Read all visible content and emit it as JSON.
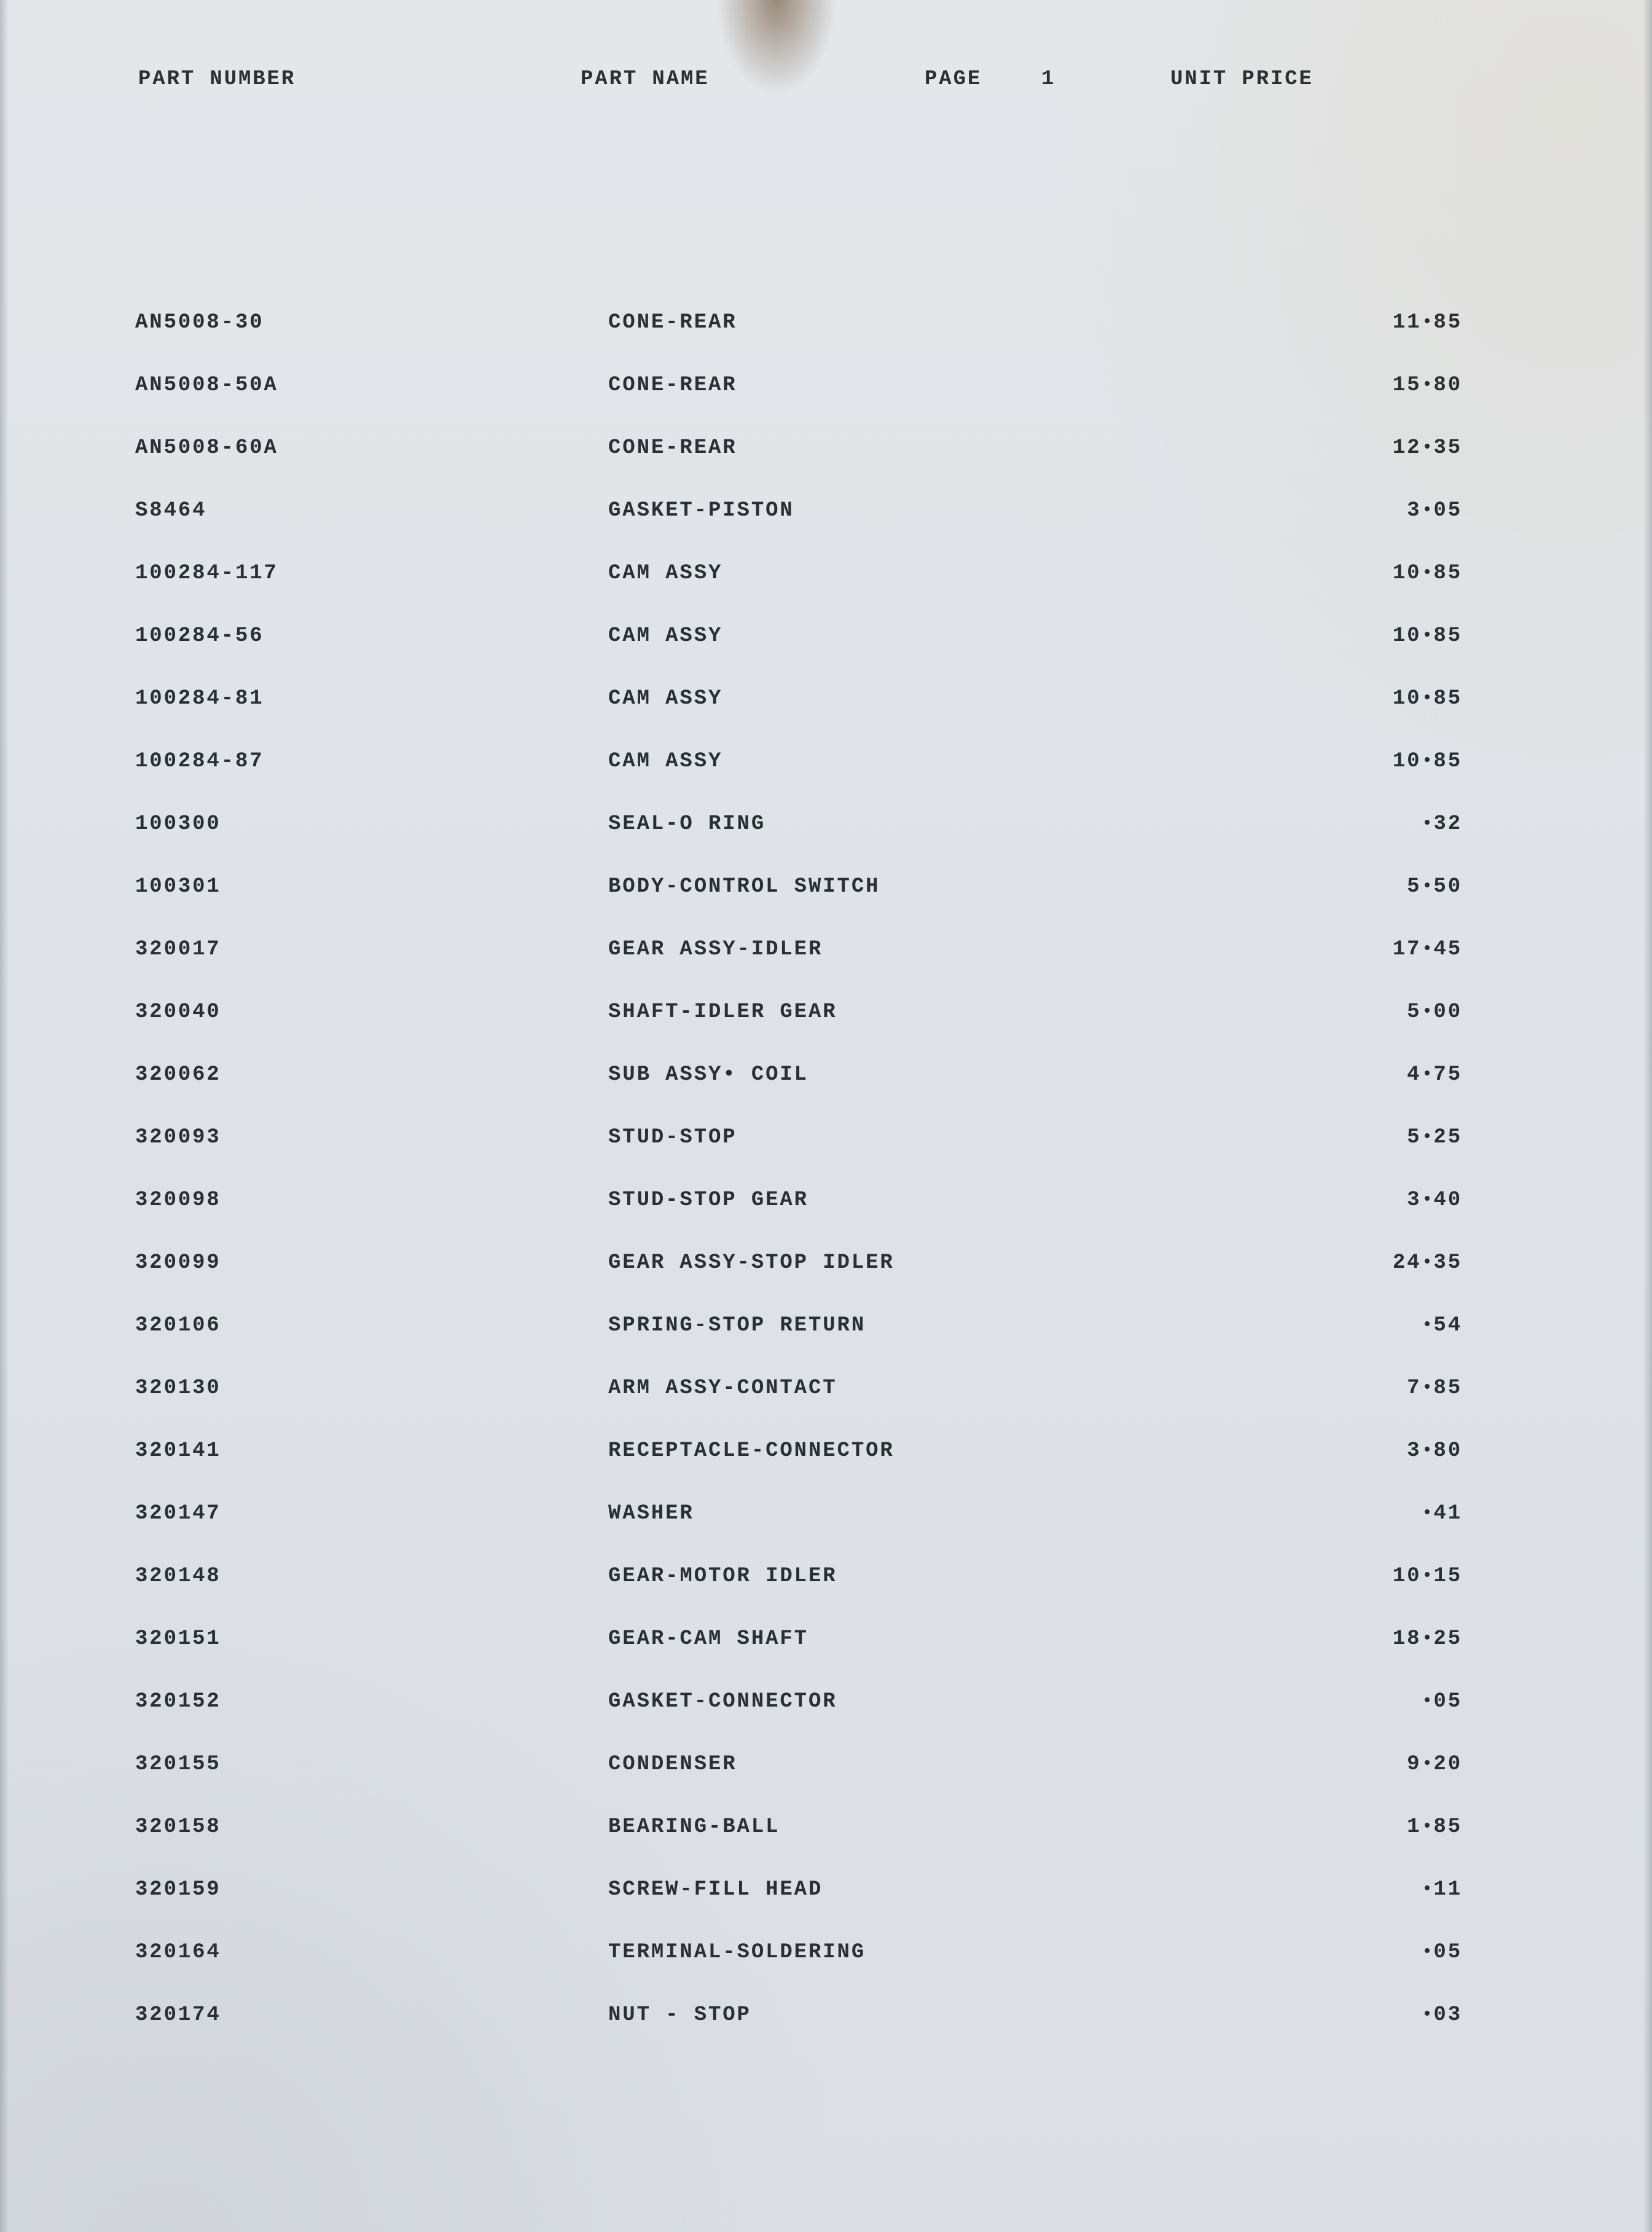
{
  "document": {
    "type": "table",
    "page_number": "1",
    "background_color": "#e2e6ea",
    "text_color": "#2a2f33",
    "font_family": "Courier / typewriter monospace",
    "font_size_pt": 11,
    "letter_spacing_em": 0.18,
    "columns": [
      {
        "key": "part_number",
        "label": "PART NUMBER",
        "align": "left"
      },
      {
        "key": "part_name",
        "label": "PART NAME",
        "align": "left"
      },
      {
        "key": "page",
        "label": "PAGE",
        "align": "left"
      },
      {
        "key": "unit_price",
        "label": "UNIT PRICE",
        "align": "right"
      }
    ],
    "decimal_glyph": "bullet",
    "rows": [
      {
        "part_number": "AN5008-30",
        "part_name": "CONE-REAR",
        "price_int": "11",
        "price_frac": "85"
      },
      {
        "part_number": "AN5008-50A",
        "part_name": "CONE-REAR",
        "price_int": "15",
        "price_frac": "80"
      },
      {
        "part_number": "AN5008-60A",
        "part_name": "CONE-REAR",
        "price_int": "12",
        "price_frac": "35"
      },
      {
        "part_number": "S8464",
        "part_name": "GASKET-PISTON",
        "price_int": "3",
        "price_frac": "05"
      },
      {
        "part_number": "100284-117",
        "part_name": "CAM ASSY",
        "price_int": "10",
        "price_frac": "85"
      },
      {
        "part_number": "100284-56",
        "part_name": "CAM ASSY",
        "price_int": "10",
        "price_frac": "85"
      },
      {
        "part_number": "100284-81",
        "part_name": "CAM ASSY",
        "price_int": "10",
        "price_frac": "85"
      },
      {
        "part_number": "100284-87",
        "part_name": "CAM ASSY",
        "price_int": "10",
        "price_frac": "85"
      },
      {
        "part_number": "100300",
        "part_name": "SEAL-O RING",
        "price_int": "",
        "price_frac": "32"
      },
      {
        "part_number": "100301",
        "part_name": "BODY-CONTROL SWITCH",
        "price_int": "5",
        "price_frac": "50"
      },
      {
        "part_number": "320017",
        "part_name": "GEAR ASSY-IDLER",
        "price_int": "17",
        "price_frac": "45"
      },
      {
        "part_number": "320040",
        "part_name": "SHAFT-IDLER GEAR",
        "price_int": "5",
        "price_frac": "00"
      },
      {
        "part_number": "320062",
        "part_name": "SUB ASSY• COIL",
        "price_int": "4",
        "price_frac": "75"
      },
      {
        "part_number": "320093",
        "part_name": "STUD-STOP",
        "price_int": "5",
        "price_frac": "25"
      },
      {
        "part_number": "320098",
        "part_name": "STUD-STOP GEAR",
        "price_int": "3",
        "price_frac": "40"
      },
      {
        "part_number": "320099",
        "part_name": "GEAR ASSY-STOP IDLER",
        "price_int": "24",
        "price_frac": "35"
      },
      {
        "part_number": "320106",
        "part_name": "SPRING-STOP RETURN",
        "price_int": "",
        "price_frac": "54"
      },
      {
        "part_number": "320130",
        "part_name": "ARM ASSY-CONTACT",
        "price_int": "7",
        "price_frac": "85"
      },
      {
        "part_number": "320141",
        "part_name": "RECEPTACLE-CONNECTOR",
        "price_int": "3",
        "price_frac": "80"
      },
      {
        "part_number": "320147",
        "part_name": "WASHER",
        "price_int": "",
        "price_frac": "41"
      },
      {
        "part_number": "320148",
        "part_name": "GEAR-MOTOR IDLER",
        "price_int": "10",
        "price_frac": "15"
      },
      {
        "part_number": "320151",
        "part_name": "GEAR-CAM SHAFT",
        "price_int": "18",
        "price_frac": "25"
      },
      {
        "part_number": "320152",
        "part_name": "GASKET-CONNECTOR",
        "price_int": "",
        "price_frac": "05"
      },
      {
        "part_number": "320155",
        "part_name": "CONDENSER",
        "price_int": "9",
        "price_frac": "20"
      },
      {
        "part_number": "320158",
        "part_name": "BEARING-BALL",
        "price_int": "1",
        "price_frac": "85"
      },
      {
        "part_number": "320159",
        "part_name": "SCREW-FILL HEAD",
        "price_int": "",
        "price_frac": "11"
      },
      {
        "part_number": "320164",
        "part_name": "TERMINAL-SOLDERING",
        "price_int": "",
        "price_frac": "05"
      },
      {
        "part_number": "320174",
        "part_name": "NUT - STOP",
        "price_int": "",
        "price_frac": "03"
      }
    ]
  }
}
